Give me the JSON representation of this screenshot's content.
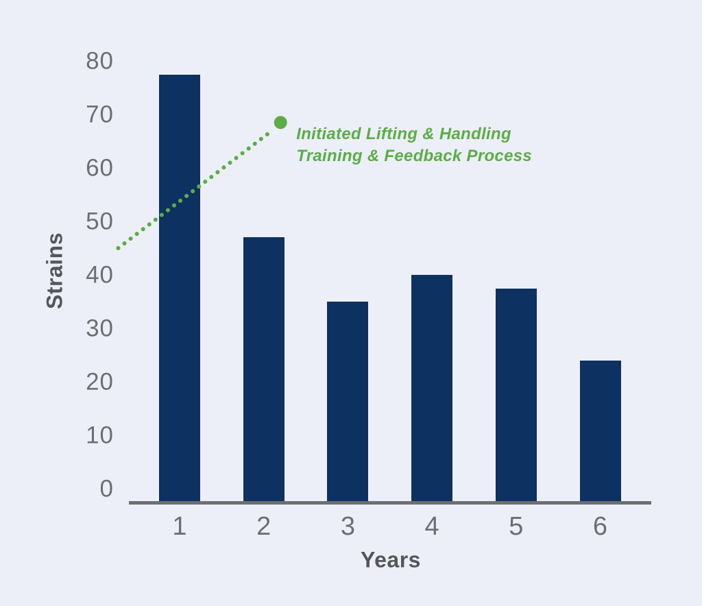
{
  "colors": {
    "background": "#EDEFF8",
    "bar": "#0D3161",
    "axis_line": "#6E6F72",
    "tick_label": "#6D6E71",
    "axis_title": "#55565A",
    "annotation_green": "#5BAD46"
  },
  "chart_data": {
    "type": "bar",
    "title": "",
    "xlabel": "Years",
    "ylabel": "Strains",
    "categories": [
      "1",
      "2",
      "3",
      "4",
      "5",
      "6"
    ],
    "values": [
      77.5,
      47,
      35,
      40,
      37.5,
      24
    ],
    "ylim": [
      0,
      80
    ],
    "yticks": [
      0,
      10,
      20,
      30,
      40,
      50,
      60,
      70,
      80
    ],
    "grid": false,
    "legend": null,
    "bar_color": "#0D3161",
    "annotation": {
      "text_line1": "Initiated Lifting & Handling",
      "text_line2": "Training & Feedback Process",
      "color": "#5BAD46",
      "style": "dotted-line-with-end-dot",
      "line_from": {
        "year": 0.27,
        "strains": 45
      },
      "line_to": {
        "year": 2.1,
        "strains": 67
      },
      "end_dot": {
        "year": 2.2,
        "strains": 68.5
      }
    }
  }
}
